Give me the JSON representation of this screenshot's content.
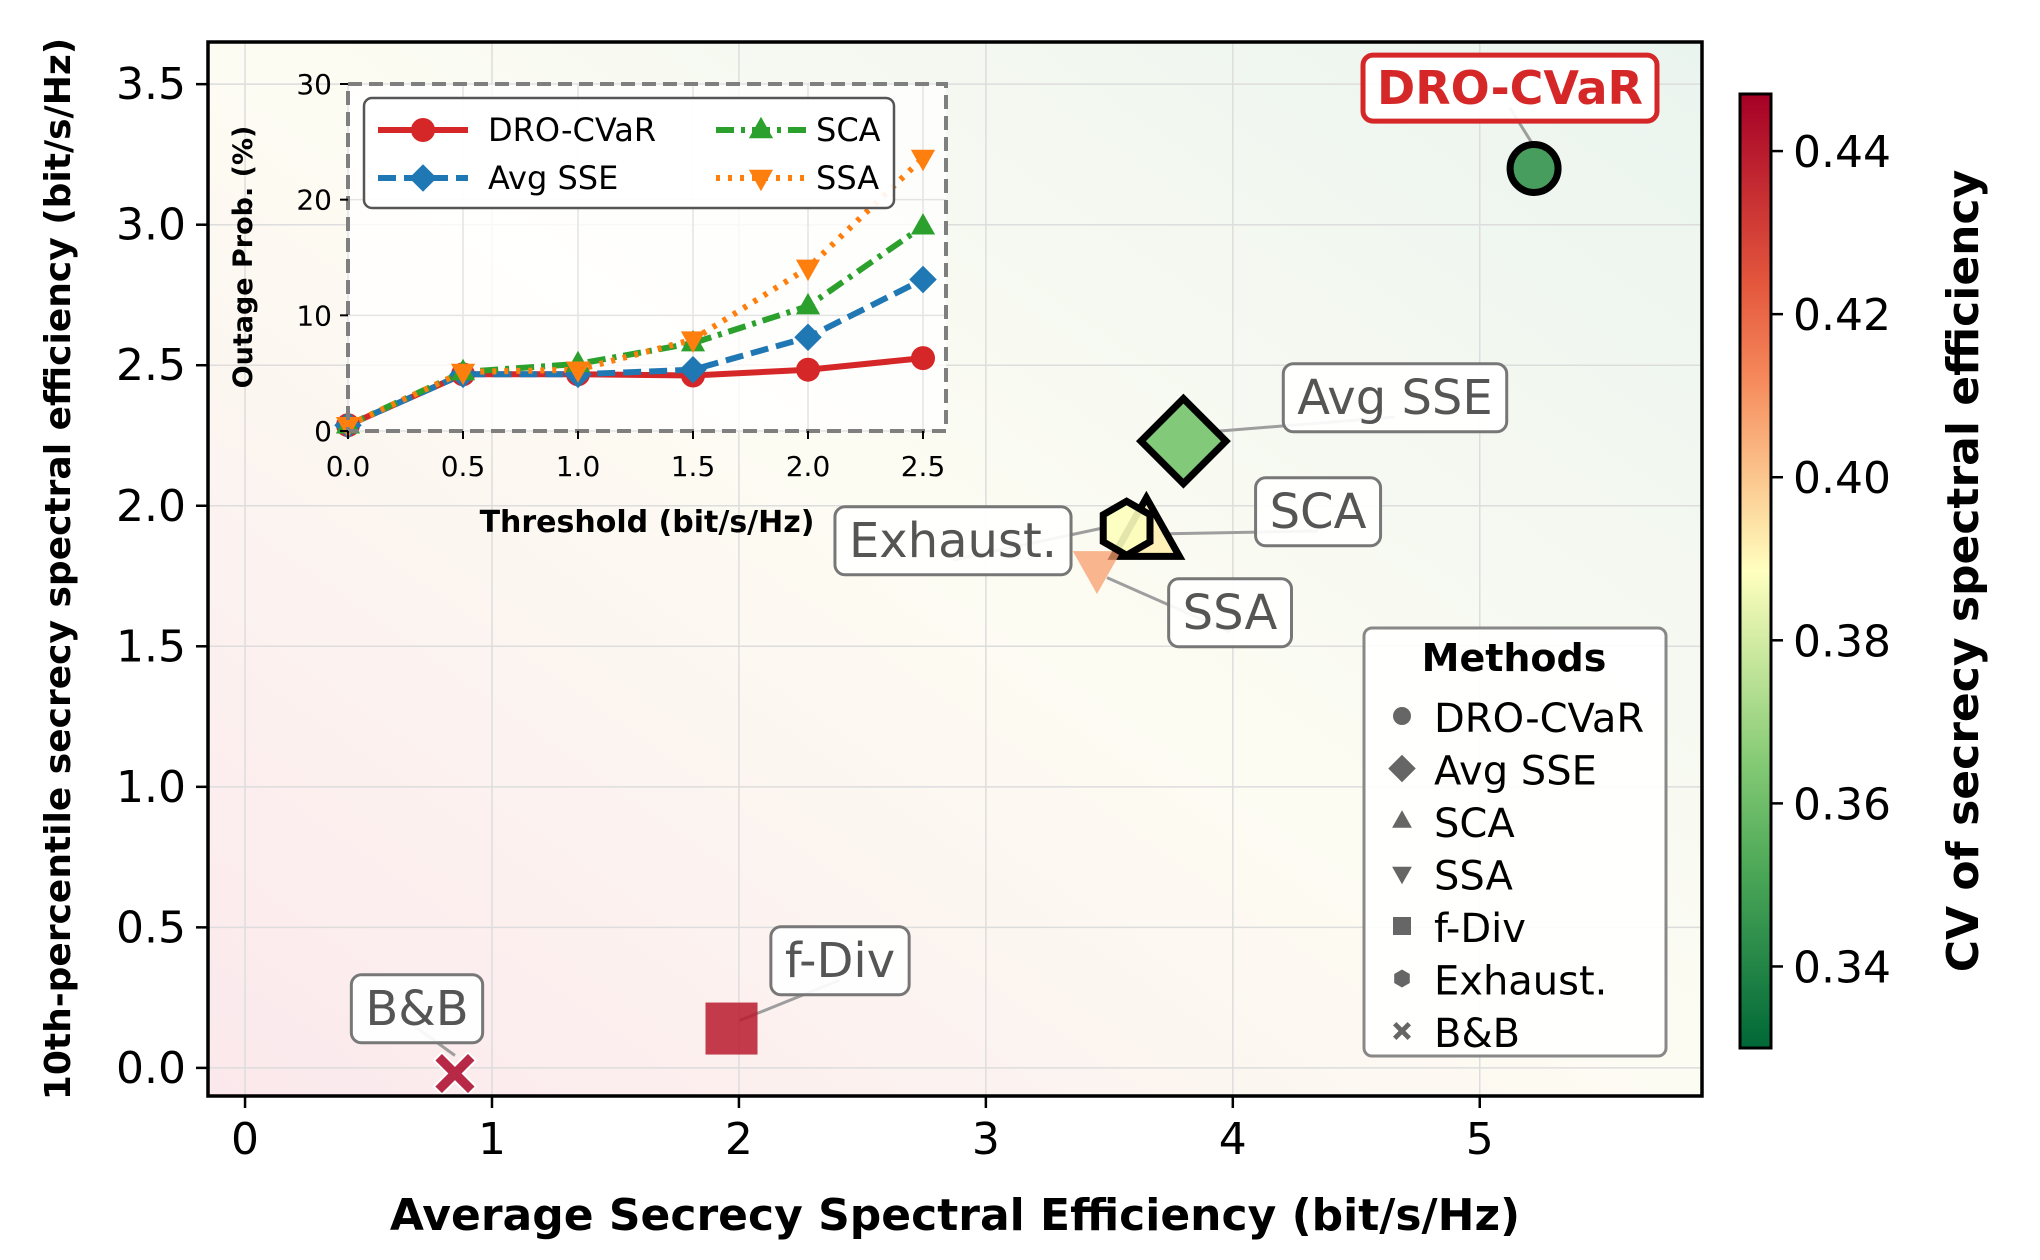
{
  "chart_data": [
    {
      "id": "main",
      "type": "scatter",
      "xlabel": "Average Secrecy Spectral Efficiency (bit/s/Hz)",
      "ylabel": "10th-percentile secrecy spectral efficiency (bit/s/Hz)",
      "xlim": [
        -0.15,
        5.9
      ],
      "ylim": [
        -0.1,
        3.65
      ],
      "xticks": [
        0,
        1,
        2,
        3,
        4,
        5
      ],
      "xtick_labels": [
        "0",
        "1",
        "2",
        "3",
        "4",
        "5"
      ],
      "yticks": [
        0.0,
        0.5,
        1.0,
        1.5,
        2.0,
        2.5,
        3.0,
        3.5
      ],
      "ytick_labels": [
        "0.0",
        "0.5",
        "1.0",
        "1.5",
        "2.0",
        "2.5",
        "3.0",
        "3.5"
      ],
      "grid": true,
      "points": [
        {
          "name": "DRO-CVaR",
          "marker": "circle",
          "x": 5.22,
          "y": 3.2,
          "cv": 0.345,
          "label": "DRO-CVaR",
          "highlight": true
        },
        {
          "name": "Avg SSE",
          "marker": "diamond",
          "x": 3.8,
          "y": 2.23,
          "cv": 0.362,
          "label": "Avg SSE",
          "highlight": false
        },
        {
          "name": "SCA",
          "marker": "triangle-up",
          "x": 3.65,
          "y": 1.9,
          "cv": 0.392,
          "label": "SCA",
          "highlight": false
        },
        {
          "name": "SSA",
          "marker": "triangle-down",
          "x": 3.45,
          "y": 1.78,
          "cv": 0.408,
          "label": "SSA",
          "highlight": false
        },
        {
          "name": "Exhaust.",
          "marker": "hexagon",
          "x": 3.57,
          "y": 1.92,
          "cv": 0.388,
          "label": "Exhaust.",
          "highlight": false
        },
        {
          "name": "f-Div",
          "marker": "square",
          "x": 1.97,
          "y": 0.14,
          "cv": 0.44,
          "label": "f-Div",
          "highlight": false
        },
        {
          "name": "B&B",
          "marker": "x",
          "x": 0.85,
          "y": -0.02,
          "cv": 0.445,
          "label": "B&B",
          "highlight": false
        }
      ],
      "legend": {
        "title": "Methods",
        "position": "lower-right",
        "entries": [
          {
            "label": "DRO-CVaR",
            "marker": "circle"
          },
          {
            "label": "Avg SSE",
            "marker": "diamond"
          },
          {
            "label": "SCA",
            "marker": "triangle-up"
          },
          {
            "label": "SSA",
            "marker": "triangle-down"
          },
          {
            "label": "f-Div",
            "marker": "square"
          },
          {
            "label": "Exhaust.",
            "marker": "hexagon"
          },
          {
            "label": "B&B",
            "marker": "x"
          }
        ]
      }
    },
    {
      "id": "inset",
      "type": "line",
      "position": "upper-left",
      "xlabel": "Threshold (bit/s/Hz)",
      "ylabel": "Outage Prob. (%)",
      "xlim": [
        0,
        2.6
      ],
      "ylim": [
        0,
        30
      ],
      "xticks": [
        0.0,
        0.5,
        1.0,
        1.5,
        2.0,
        2.5
      ],
      "xtick_labels": [
        "0.0",
        "0.5",
        "1.0",
        "1.5",
        "2.0",
        "2.5"
      ],
      "yticks": [
        0,
        10,
        20,
        30
      ],
      "ytick_labels": [
        "0",
        "10",
        "20",
        "30"
      ],
      "x": [
        0.0,
        0.5,
        1.0,
        1.5,
        2.0,
        2.5
      ],
      "series": [
        {
          "name": "DRO-CVaR",
          "color": "#d62728",
          "dash": "solid",
          "marker": "circle",
          "values": [
            0.5,
            4.9,
            4.9,
            4.8,
            5.3,
            6.3
          ]
        },
        {
          "name": "Avg SSE",
          "color": "#1f77b4",
          "dash": "dashed",
          "marker": "diamond",
          "values": [
            0.5,
            4.9,
            4.9,
            5.3,
            8.1,
            13.1
          ]
        },
        {
          "name": "SCA",
          "color": "#2ca02c",
          "dash": "dashdot",
          "marker": "triangle-up",
          "values": [
            0.5,
            5.1,
            5.8,
            7.6,
            10.8,
            17.7
          ]
        },
        {
          "name": "SSA",
          "color": "#ff7f0e",
          "dash": "dotted",
          "marker": "triangle-down",
          "values": [
            0.5,
            5.1,
            5.3,
            7.9,
            14.1,
            23.6
          ]
        }
      ],
      "legend_position": "upper-left"
    }
  ],
  "colorbar": {
    "label": "CV of secrecy spectral efficiency",
    "range": [
      0.33,
      0.447
    ],
    "ticks": [
      0.34,
      0.36,
      0.38,
      0.4,
      0.42,
      0.44
    ],
    "tick_labels": [
      "0.34",
      "0.36",
      "0.38",
      "0.40",
      "0.42",
      "0.44"
    ],
    "colormap": "RdYlGn_r"
  }
}
